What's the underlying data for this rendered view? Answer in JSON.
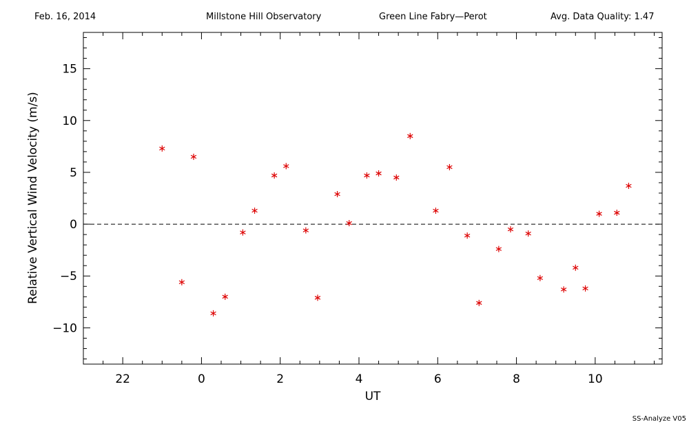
{
  "header": {
    "date": "Feb. 16, 2014",
    "observatory": "Millstone Hill Observatory",
    "instrument": "Green Line Fabry—Perot",
    "quality_label": "Avg. Data Quality: 1.47"
  },
  "footer": {
    "software": "SS-Analyze V05"
  },
  "colors": {
    "points": "#dd0000",
    "axes": "#000000",
    "zero_line": "#000000"
  },
  "chart_data": {
    "type": "scatter",
    "xlabel": "UT",
    "ylabel": "Relative Vertical Wind Velocity (m/s)",
    "xlim": [
      21.0,
      35.7
    ],
    "ylim": [
      -13.5,
      18.5
    ],
    "x_ticks": [
      22,
      24,
      26,
      28,
      30,
      32,
      34
    ],
    "x_tick_labels": [
      "22",
      "0",
      "2",
      "4",
      "6",
      "8",
      "10"
    ],
    "y_ticks": [
      -10,
      -5,
      0,
      5,
      10,
      15
    ],
    "y_tick_labels": [
      "−10",
      "−5",
      "0",
      "5",
      "10",
      "15"
    ],
    "zero_line": true,
    "grid": false,
    "series": [
      {
        "x": [
          23.0,
          23.5,
          23.8,
          24.3,
          24.6,
          25.05,
          25.35,
          25.85,
          26.15,
          26.65,
          26.95,
          27.45,
          27.75,
          28.2,
          28.5,
          28.95,
          29.3,
          29.95,
          30.3,
          30.75,
          31.05,
          31.55,
          31.85,
          32.3,
          32.6,
          33.2,
          33.5,
          33.75,
          34.1,
          34.55,
          34.85
        ],
        "y": [
          7.3,
          -5.6,
          6.5,
          -8.6,
          -7.0,
          -0.8,
          1.3,
          4.7,
          5.6,
          -0.6,
          -7.1,
          2.9,
          0.1,
          4.7,
          4.9,
          4.5,
          8.5,
          1.3,
          5.5,
          -1.1,
          -7.6,
          -2.4,
          -0.5,
          -0.9,
          -5.2,
          -6.3,
          -4.2,
          -6.2,
          1.0,
          1.1,
          3.7
        ]
      }
    ]
  }
}
